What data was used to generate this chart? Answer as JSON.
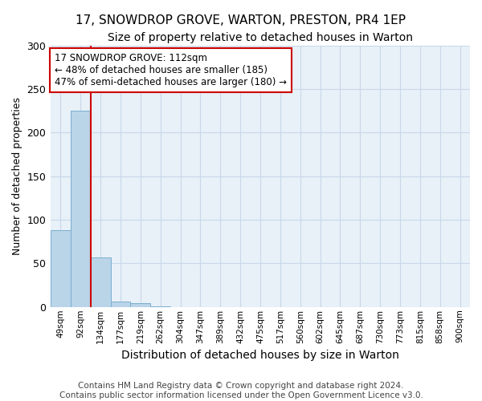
{
  "title": "17, SNOWDROP GROVE, WARTON, PRESTON, PR4 1EP",
  "subtitle": "Size of property relative to detached houses in Warton",
  "xlabel": "Distribution of detached houses by size in Warton",
  "ylabel": "Number of detached properties",
  "bar_labels": [
    "49sqm",
    "92sqm",
    "134sqm",
    "177sqm",
    "219sqm",
    "262sqm",
    "304sqm",
    "347sqm",
    "389sqm",
    "432sqm",
    "475sqm",
    "517sqm",
    "560sqm",
    "602sqm",
    "645sqm",
    "687sqm",
    "730sqm",
    "773sqm",
    "815sqm",
    "858sqm",
    "900sqm"
  ],
  "bar_values": [
    88,
    225,
    57,
    6,
    4,
    1,
    0,
    0,
    0,
    0,
    0,
    0,
    0,
    0,
    0,
    0,
    0,
    0,
    0,
    0,
    0
  ],
  "bar_color": "#bad4e8",
  "bar_edgecolor": "#7aaed0",
  "ylim": [
    0,
    300
  ],
  "yticks": [
    0,
    50,
    100,
    150,
    200,
    250,
    300
  ],
  "vline_x_index": 1.5,
  "annotation_line1": "17 SNOWDROP GROVE: 112sqm",
  "annotation_line2": "← 48% of detached houses are smaller (185)",
  "annotation_line3": "47% of semi-detached houses are larger (180) →",
  "vline_color": "#cc0000",
  "annotation_box_edgecolor": "#cc0000",
  "grid_color": "#c8d8e8",
  "background_color": "#e8f0f8",
  "footer_line1": "Contains HM Land Registry data © Crown copyright and database right 2024.",
  "footer_line2": "Contains public sector information licensed under the Open Government Licence v3.0.",
  "title_fontsize": 11,
  "subtitle_fontsize": 10,
  "annotation_fontsize": 8.5,
  "axis_label_fontsize": 9,
  "xlabel_fontsize": 10,
  "footer_fontsize": 7.5
}
